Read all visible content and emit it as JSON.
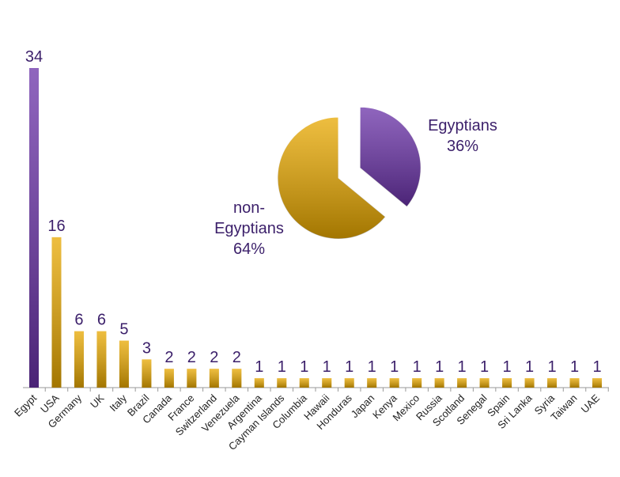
{
  "chart_data": [
    {
      "type": "bar",
      "categories": [
        "Egypt",
        "USA",
        "Germany",
        "UK",
        "Italy",
        "Brazil",
        "Canada",
        "France",
        "Switzerland",
        "Venezuela",
        "Argentina",
        "Cayman Islands",
        "Columbia",
        "Hawaii",
        "Honduras",
        "Japan",
        "Kenya",
        "Mexico",
        "Russia",
        "Scotland",
        "Senegal",
        "Spain",
        "Sri Lanka",
        "Syria",
        "Taiwan",
        "UAE"
      ],
      "values": [
        34,
        16,
        6,
        6,
        5,
        3,
        2,
        2,
        2,
        2,
        1,
        1,
        1,
        1,
        1,
        1,
        1,
        1,
        1,
        1,
        1,
        1,
        1,
        1,
        1,
        1
      ],
      "colors": [
        "#6a32a8",
        "#e8a800",
        "#e8a800",
        "#e8a800",
        "#e8a800",
        "#e8a800",
        "#e8a800",
        "#e8a800",
        "#e8a800",
        "#e8a800",
        "#e8a800",
        "#e8a800",
        "#e8a800",
        "#e8a800",
        "#e8a800",
        "#e8a800",
        "#e8a800",
        "#e8a800",
        "#e8a800",
        "#e8a800",
        "#e8a800",
        "#e8a800",
        "#e8a800",
        "#e8a800",
        "#e8a800",
        "#e8a800"
      ]
    },
    {
      "type": "pie",
      "labels": [
        "Egyptians",
        "non-Egyptians"
      ],
      "values": [
        36,
        64
      ],
      "value_labels": [
        "36%",
        "64%"
      ],
      "colors": [
        "#6a32a8",
        "#e8a800"
      ],
      "exploded": [
        true,
        false
      ]
    }
  ]
}
